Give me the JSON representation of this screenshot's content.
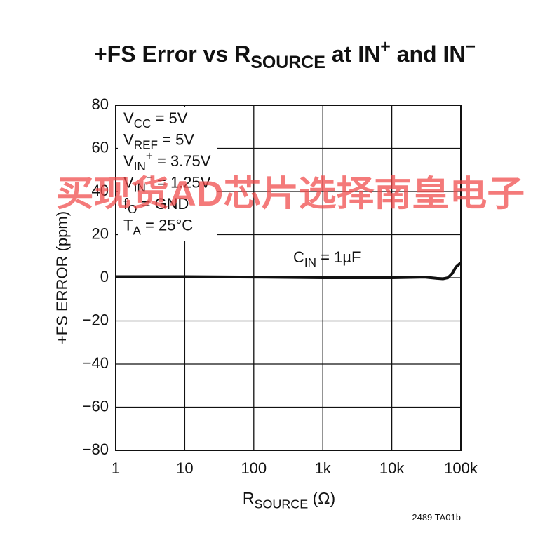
{
  "chart_data": {
    "type": "line",
    "title": [
      "+FS Error vs R",
      "SOURCE",
      " at IN",
      "+",
      " and IN",
      "−"
    ],
    "x_label": [
      "R",
      "SOURCE",
      " (Ω)"
    ],
    "y_label": "+FS ERROR (ppm)",
    "annotations": [
      [
        "V",
        "CC",
        " = 5V"
      ],
      [
        "V",
        "REF",
        " = 5V"
      ],
      [
        "V",
        "IN",
        "+",
        " = 3.75V"
      ],
      [
        "V",
        "IN",
        "−",
        " = 1.25V"
      ],
      [
        "f",
        "O",
        " = GND"
      ],
      [
        "T",
        "A",
        " = 25°C"
      ]
    ],
    "curve_label": [
      "C",
      "IN",
      " = 1µF"
    ],
    "footnote": "2489 TA01b",
    "watermark": "买现货AD芯片选择南皇电子",
    "x": [
      1,
      10,
      100,
      1000,
      10000,
      30000,
      45000,
      55000,
      65000,
      75000,
      85000,
      100000
    ],
    "series": [
      {
        "color": "#111111",
        "values": [
          0.5,
          0.5,
          0.3,
          0,
          0,
          0.3,
          -0.3,
          -0.5,
          0,
          2,
          5,
          7
        ]
      }
    ],
    "xscale": "log",
    "xlim": [
      1,
      100000
    ],
    "xticks": [
      1,
      10,
      100,
      {
        "value": 1000,
        "label": "1k"
      },
      {
        "value": 10000,
        "label": "10k"
      },
      {
        "value": 100000,
        "label": "100k"
      }
    ],
    "ylim": [
      -80,
      80
    ],
    "yticks": [
      {
        "value": -80,
        "label": "−80"
      },
      {
        "value": -60,
        "label": "−60"
      },
      {
        "value": -40,
        "label": "−40"
      },
      {
        "value": -20,
        "label": "−20"
      },
      0,
      20,
      40,
      60,
      80
    ],
    "grid": true
  }
}
